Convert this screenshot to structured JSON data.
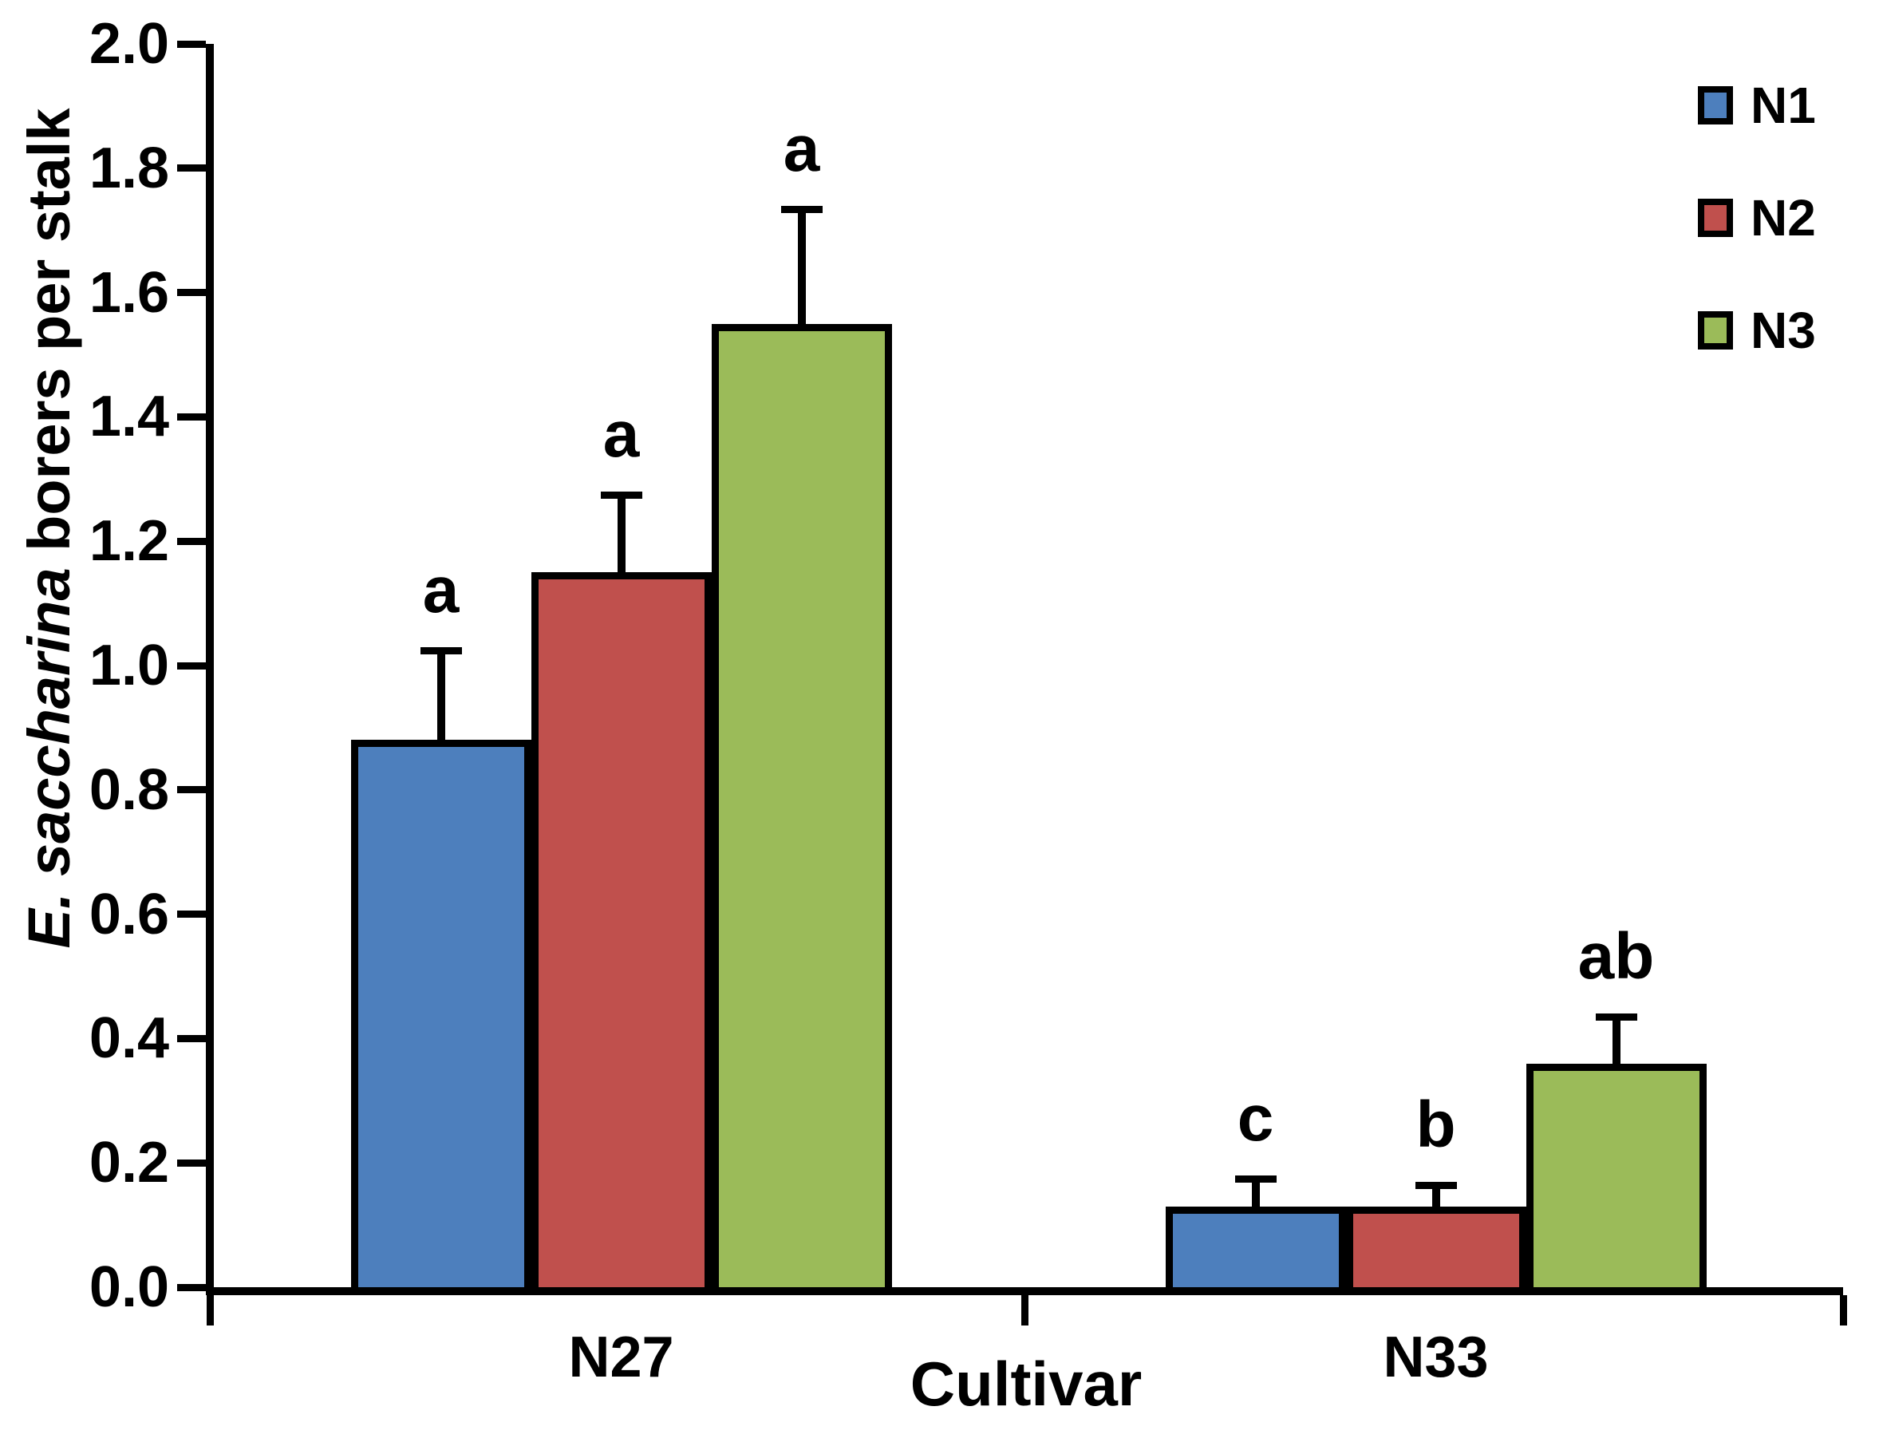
{
  "figure": {
    "x_axis_title": "Cultivar",
    "y_axis_title_italic": "E. saccharina",
    "y_axis_title_rest": " borers per stalk"
  },
  "chart_data": {
    "type": "bar",
    "title": "",
    "xlabel": "Cultivar",
    "ylabel": "E. saccharina borers per stalk",
    "categories": [
      "N27",
      "N33"
    ],
    "series": [
      {
        "name": "N1",
        "color": "#4d7fbd",
        "values": [
          0.88,
          0.13
        ],
        "errors_plus": [
          0.15,
          0.05
        ],
        "sig_letters": [
          "a",
          "c"
        ]
      },
      {
        "name": "N2",
        "color": "#c0504d",
        "values": [
          1.15,
          0.13
        ],
        "errors_plus": [
          0.13,
          0.04
        ],
        "sig_letters": [
          "a",
          "b"
        ]
      },
      {
        "name": "N3",
        "color": "#9bbb59",
        "values": [
          1.55,
          0.36
        ],
        "errors_plus": [
          0.19,
          0.08
        ],
        "sig_letters": [
          "a",
          "ab"
        ]
      }
    ],
    "ylim": [
      0.0,
      2.0
    ],
    "ytick_step": 0.2,
    "ytick_decimals": 1,
    "grid": false,
    "legend_position": "top-right",
    "error_bars": "upper-only",
    "bar_outline_color": "#000000",
    "axis_color": "#000000",
    "background_color": "#ffffff"
  }
}
